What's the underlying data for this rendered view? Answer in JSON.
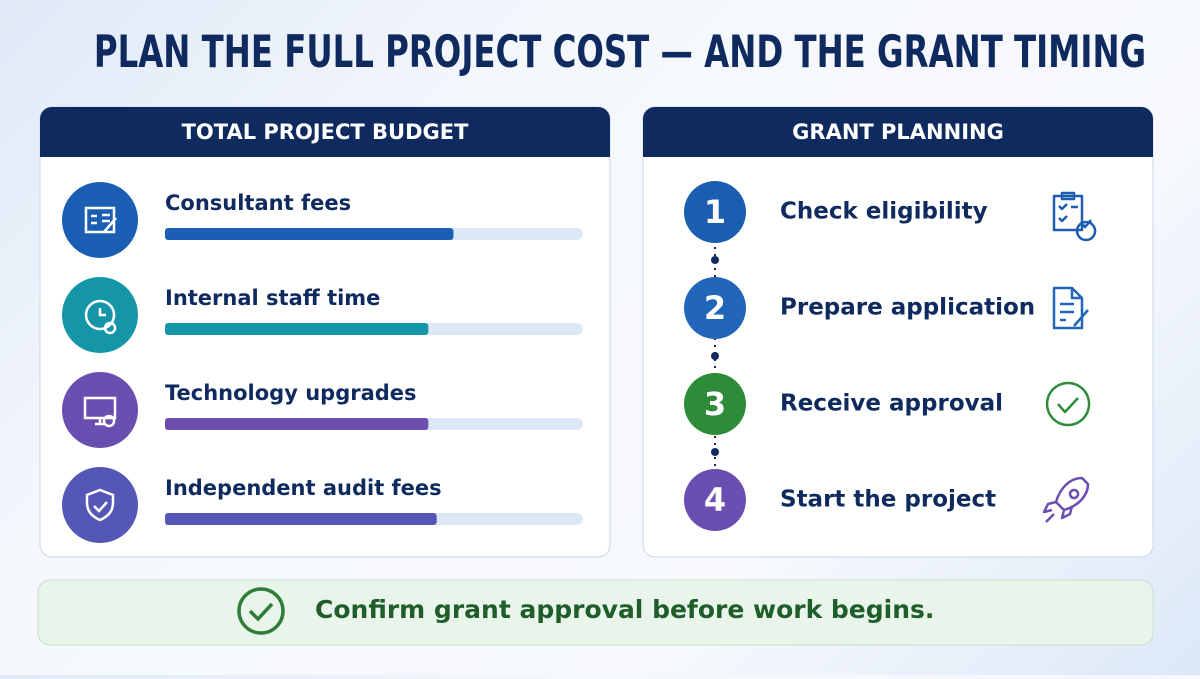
{
  "header": {
    "title": "PLAN THE FULL PROJECT COST — AND THE GRANT TIMING"
  },
  "budget": {
    "title": "TOTAL PROJECT BUDGET",
    "items": [
      {
        "label": "Consultant fees",
        "fill": 69,
        "color": "#1a5fb4"
      },
      {
        "label": "Internal staff time",
        "fill": 63,
        "color": "#1596a8"
      },
      {
        "label": "Technology upgrades",
        "fill": 63,
        "color": "#6a4fb0"
      },
      {
        "label": "Independent audit fees",
        "fill": 65,
        "color": "#5457b5"
      }
    ]
  },
  "grant": {
    "title": "GRANT PLANNING",
    "steps": [
      {
        "number": "1",
        "label": "Check eligibility",
        "color": "#1c5db0"
      },
      {
        "number": "2",
        "label": "Prepare application",
        "color": "#2166b8"
      },
      {
        "number": "3",
        "label": "Receive approval",
        "color": "#2e8b3a"
      },
      {
        "number": "4",
        "label": "Start the project",
        "color": "#6a4fb0"
      }
    ]
  },
  "footer": {
    "text": "Confirm grant approval before work begins."
  }
}
